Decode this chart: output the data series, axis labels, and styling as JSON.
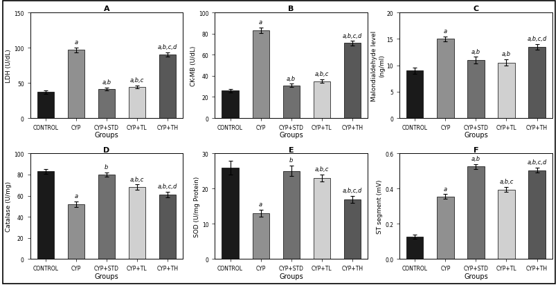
{
  "groups": [
    "CONTROL",
    "CYP",
    "CYP+STD",
    "CYP+TL",
    "CYP+TH"
  ],
  "bar_colors": [
    "#1a1a1a",
    "#909090",
    "#707070",
    "#d0d0d0",
    "#585858"
  ],
  "subplots": {
    "A": {
      "title": "A",
      "ylabel": "LDH (U/dL)",
      "ylim": [
        0,
        150
      ],
      "yticks": [
        0,
        50,
        100,
        150
      ],
      "values": [
        37,
        97,
        41,
        44,
        90
      ],
      "errors": [
        2.5,
        3.5,
        2.0,
        2.0,
        3.0
      ],
      "annotations": [
        "",
        "a",
        "a,b",
        "a,b,c",
        "a,b,c,d"
      ]
    },
    "B": {
      "title": "B",
      "ylabel": "CK-MB (U/dL)",
      "ylim": [
        0,
        100
      ],
      "yticks": [
        0,
        20,
        40,
        60,
        80,
        100
      ],
      "values": [
        26,
        83,
        31,
        35,
        71
      ],
      "errors": [
        1.5,
        2.5,
        1.5,
        1.5,
        2.0
      ],
      "annotations": [
        "",
        "a",
        "a,b",
        "a,b,c",
        "a,b,c,d"
      ]
    },
    "C": {
      "title": "C",
      "ylabel": "Malondialdehyde level\n(ng/ml)",
      "ylim": [
        0,
        20
      ],
      "yticks": [
        0,
        5,
        10,
        15,
        20
      ],
      "values": [
        9,
        15,
        11,
        10.5,
        13.5
      ],
      "errors": [
        0.6,
        0.5,
        0.6,
        0.6,
        0.5
      ],
      "annotations": [
        "",
        "a",
        "a,b",
        "a,b",
        "a,b,c,d"
      ]
    },
    "D": {
      "title": "D",
      "ylabel": "Catalase (U/mg)",
      "ylim": [
        0,
        100
      ],
      "yticks": [
        0,
        20,
        40,
        60,
        80,
        100
      ],
      "values": [
        83,
        52,
        80,
        68,
        61
      ],
      "errors": [
        2.5,
        2.5,
        2.0,
        2.5,
        2.5
      ],
      "annotations": [
        "",
        "a",
        "b",
        "a,b,c",
        "a,b,c,d"
      ]
    },
    "E": {
      "title": "E",
      "ylabel": "SOD (U/mg Protein)",
      "ylim": [
        0,
        30
      ],
      "yticks": [
        0,
        10,
        20,
        30
      ],
      "values": [
        26,
        13,
        25,
        23,
        17
      ],
      "errors": [
        2.0,
        1.0,
        1.5,
        1.0,
        1.0
      ],
      "annotations": [
        "",
        "a",
        "b",
        "a,b,c",
        "a,b,c,d"
      ]
    },
    "F": {
      "title": "F",
      "ylabel": "ST segment (mV)",
      "ylim": [
        0.0,
        0.6
      ],
      "yticks": [
        0.0,
        0.2,
        0.4,
        0.6
      ],
      "values": [
        0.125,
        0.355,
        0.525,
        0.395,
        0.505
      ],
      "errors": [
        0.012,
        0.013,
        0.013,
        0.013,
        0.013
      ],
      "annotations": [
        "",
        "a",
        "a,b",
        "a,b,c",
        "a,b,c,d"
      ]
    }
  },
  "xlabel": "Groups",
  "background_color": "#ffffff",
  "outer_border_color": "#000000",
  "font_size": 7,
  "annotation_font_size": 6,
  "bar_width": 0.55
}
